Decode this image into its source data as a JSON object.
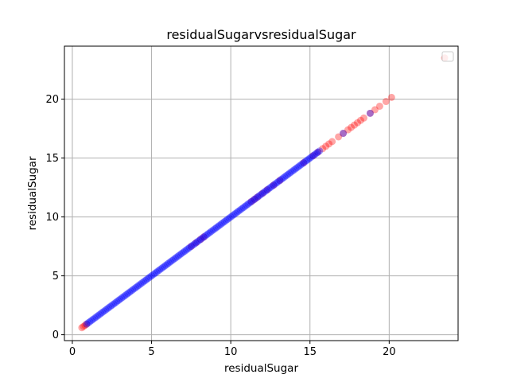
{
  "chart_data": {
    "type": "scatter",
    "title": "residualSugarvsresidualSugar",
    "xlabel": "residualSugar",
    "ylabel": "residualSugar",
    "xlim": [
      -0.5,
      24.35
    ],
    "ylim": [
      -0.5,
      24.5
    ],
    "xticks": [
      0,
      5,
      10,
      15,
      20
    ],
    "yticks": [
      0,
      5,
      10,
      15,
      20
    ],
    "grid": true,
    "legend": "upper-right",
    "series": [
      {
        "color": "#ff0000",
        "alpha": 0.35,
        "values_xy": [
          [
            0.6,
            0.6
          ],
          [
            0.7,
            0.7
          ],
          [
            0.8,
            0.8
          ],
          [
            0.9,
            0.9
          ],
          [
            7.5,
            7.5
          ],
          [
            7.8,
            7.8
          ],
          [
            8.1,
            8.1
          ],
          [
            8.3,
            8.3
          ],
          [
            11.3,
            11.3
          ],
          [
            11.5,
            11.5
          ],
          [
            11.7,
            11.7
          ],
          [
            12.0,
            12.0
          ],
          [
            12.3,
            12.3
          ],
          [
            12.7,
            12.7
          ],
          [
            13.1,
            13.1
          ],
          [
            14.6,
            14.6
          ],
          [
            15.2,
            15.2
          ],
          [
            15.5,
            15.5
          ],
          [
            15.8,
            15.8
          ],
          [
            16.0,
            16.0
          ],
          [
            16.2,
            16.2
          ],
          [
            16.4,
            16.4
          ],
          [
            16.8,
            16.8
          ],
          [
            17.1,
            17.1
          ],
          [
            17.4,
            17.4
          ],
          [
            17.6,
            17.6
          ],
          [
            17.8,
            17.8
          ],
          [
            18.0,
            18.0
          ],
          [
            18.2,
            18.2
          ],
          [
            18.4,
            18.4
          ],
          [
            18.8,
            18.8
          ],
          [
            19.1,
            19.1
          ],
          [
            19.4,
            19.4
          ],
          [
            19.8,
            19.8
          ],
          [
            20.15,
            20.15
          ],
          [
            23.5,
            23.5
          ]
        ]
      },
      {
        "color": "#0000ff",
        "alpha": 0.35,
        "x_range": [
          0.9,
          15.6
        ],
        "x_step": 0.1,
        "extra_values_xy": [
          [
            17.1,
            17.1
          ],
          [
            18.8,
            18.8
          ]
        ]
      }
    ]
  }
}
